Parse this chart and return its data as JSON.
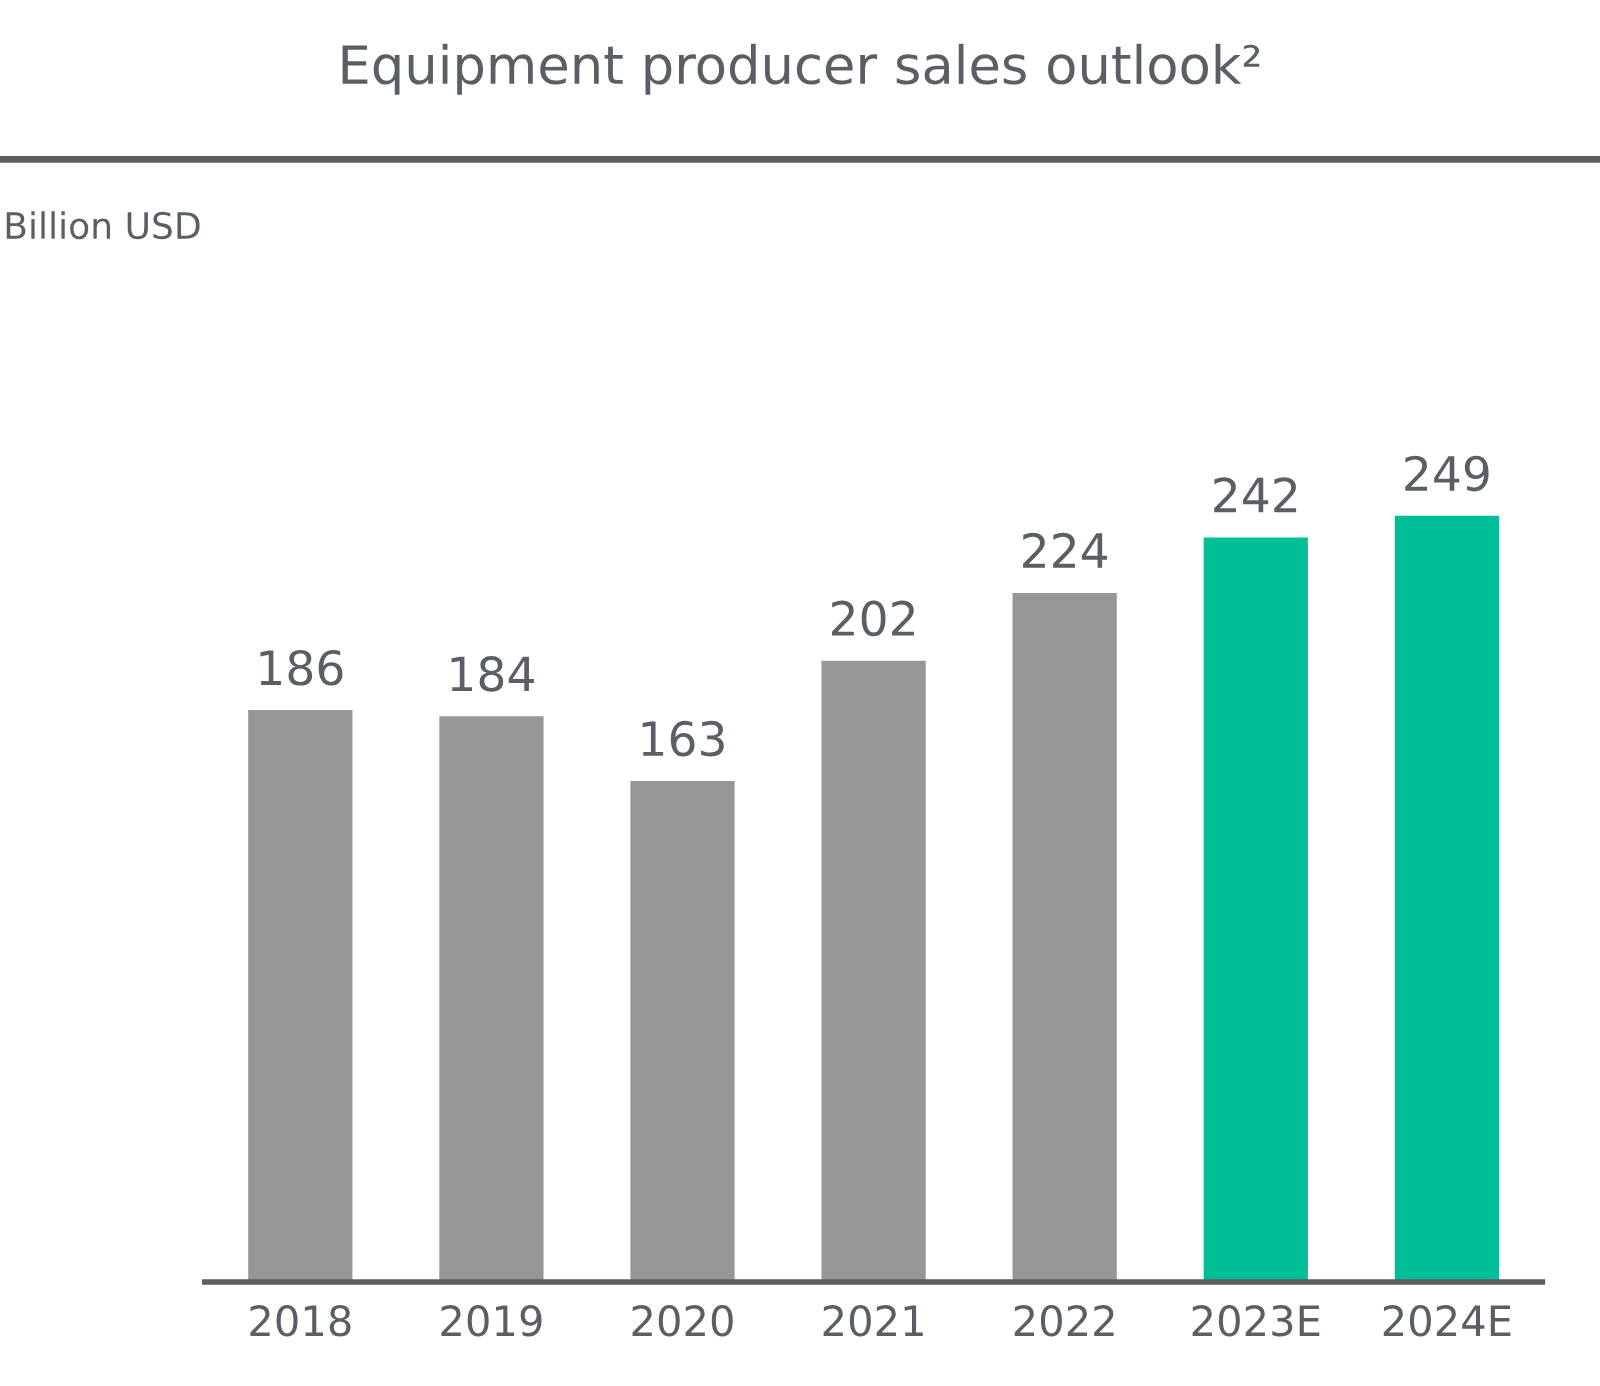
{
  "chart_data": {
    "type": "bar",
    "title": "Equipment producer sales outlook²",
    "annotations": [
      "Billion USD"
    ],
    "categories": [
      "2018",
      "2019",
      "2020",
      "2021",
      "2022",
      "2023E",
      "2024E"
    ],
    "values": [
      186,
      184,
      163,
      202,
      224,
      242,
      249
    ],
    "colors": [
      "#969696",
      "#969696",
      "#969696",
      "#969696",
      "#969696",
      "#00bf96",
      "#00bf96"
    ],
    "data_labels": true,
    "grid": false,
    "legend": false
  }
}
